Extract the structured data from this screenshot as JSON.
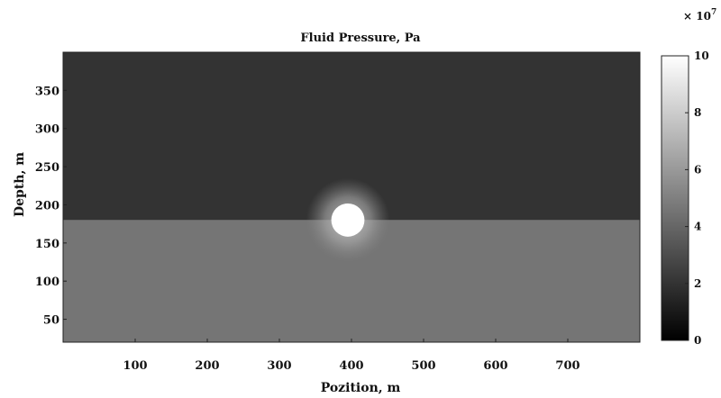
{
  "chart_data": {
    "type": "heatmap",
    "title": "Fluid Pressure, Pa",
    "xlabel": "Pozition, m",
    "ylabel": "Depth, m",
    "xlim": [
      0,
      800
    ],
    "ylim": [
      20,
      400
    ],
    "x_ticks": [
      100,
      200,
      300,
      400,
      500,
      600,
      700
    ],
    "y_ticks": [
      50,
      100,
      150,
      200,
      250,
      300,
      350
    ],
    "x_tick_labels": [
      "100",
      "200",
      "300",
      "400",
      "500",
      "600",
      "700"
    ],
    "y_tick_labels": [
      "50",
      "100",
      "150",
      "200",
      "250",
      "300",
      "350"
    ],
    "colorbar": {
      "multiplier_text": "× 10",
      "multiplier_exponent": "7",
      "range": [
        0,
        10
      ],
      "ticks": [
        0,
        2,
        4,
        6,
        8,
        10
      ],
      "tick_labels": [
        "0",
        "2",
        "4",
        "6",
        "8",
        "10"
      ],
      "colormap": "gray"
    },
    "regions": [
      {
        "name": "upper layer",
        "depth_range": [
          180,
          400
        ],
        "pressure_1e7_Pa": 2.0
      },
      {
        "name": "lower layer",
        "depth_range": [
          20,
          180
        ],
        "pressure_1e7_Pa": 4.6
      }
    ],
    "features": [
      {
        "name": "high-pressure bubble",
        "center_x": 395,
        "center_depth": 180,
        "radius": 23,
        "pressure_1e7_Pa": 10
      },
      {
        "name": "diffusion halo",
        "center_x": 395,
        "center_depth": 180,
        "radius": 58,
        "pressure_1e7_Pa": 5.6
      }
    ]
  }
}
